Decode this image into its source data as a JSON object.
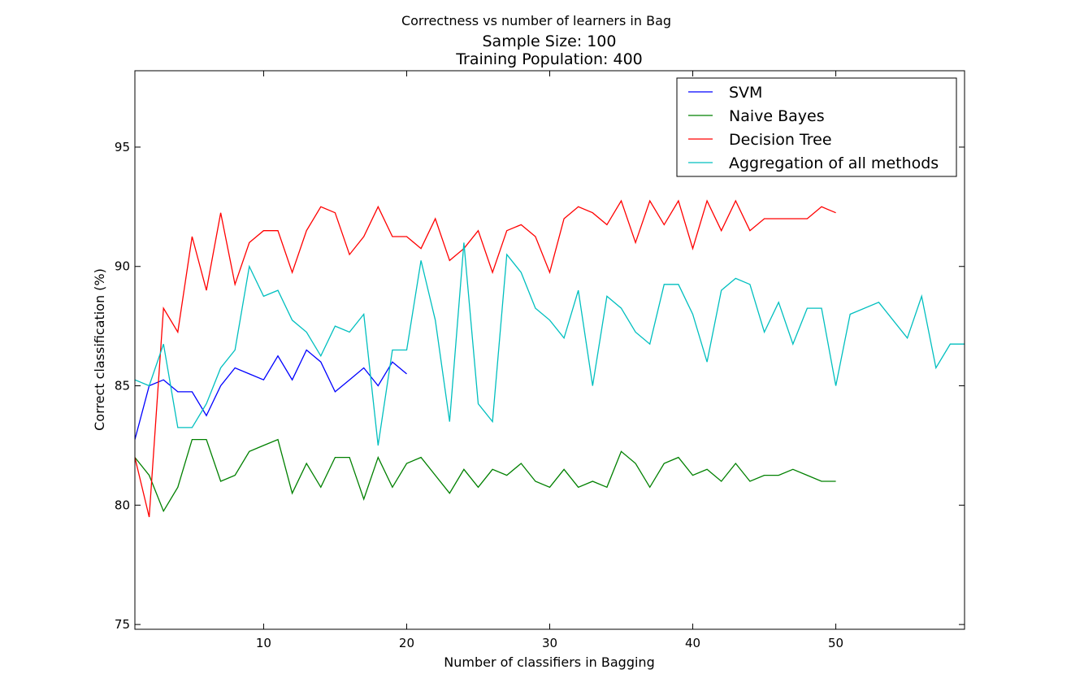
{
  "chart_data": {
    "type": "line",
    "suptitle": "Correctness vs number of learners in Bag",
    "title": [
      "Sample Size: 100",
      "Training Population: 400"
    ],
    "xlabel": "Number of classifiers in Bagging",
    "ylabel": "Correct classification (%)",
    "xlim": [
      1,
      59
    ],
    "ylim": [
      74.8,
      98.2
    ],
    "xticks": [
      10,
      20,
      30,
      40,
      50
    ],
    "yticks": [
      75,
      80,
      85,
      90,
      95
    ],
    "xtick_labels": [
      "10",
      "20",
      "30",
      "40",
      "50"
    ],
    "ytick_labels": [
      "75",
      "80",
      "85",
      "90",
      "95"
    ],
    "grid": false,
    "legend_position": "upper right",
    "series": [
      {
        "name": "SVM",
        "color": "#0000ff",
        "x": [
          1,
          2,
          3,
          4,
          5,
          6,
          7,
          8,
          9,
          10,
          11,
          12,
          13,
          14,
          15,
          16,
          17,
          18,
          19,
          20
        ],
        "values": [
          82.75,
          85.0,
          85.25,
          84.75,
          84.75,
          83.75,
          85.0,
          85.75,
          85.5,
          85.25,
          86.25,
          85.25,
          86.5,
          86.0,
          84.75,
          85.25,
          85.75,
          85.0,
          86.0,
          85.5
        ]
      },
      {
        "name": "Naive Bayes",
        "color": "#008000",
        "x": [
          1,
          2,
          3,
          4,
          5,
          6,
          7,
          8,
          9,
          10,
          11,
          12,
          13,
          14,
          15,
          16,
          17,
          18,
          19,
          20,
          21,
          22,
          23,
          24,
          25,
          26,
          27,
          28,
          29,
          30,
          31,
          32,
          33,
          34,
          35,
          36,
          37,
          38,
          39,
          40,
          41,
          42,
          43,
          44,
          45,
          46,
          47,
          48,
          49,
          50
        ],
        "values": [
          82.0,
          81.25,
          79.75,
          80.75,
          82.75,
          82.75,
          81.0,
          81.25,
          82.25,
          82.5,
          82.75,
          80.5,
          81.75,
          80.75,
          82.0,
          82.0,
          80.25,
          82.0,
          80.75,
          81.75,
          82.0,
          81.25,
          80.5,
          81.5,
          80.75,
          81.5,
          81.25,
          81.75,
          81.0,
          80.75,
          81.5,
          80.75,
          81.0,
          80.75,
          82.25,
          81.75,
          80.75,
          81.75,
          82.0,
          81.25,
          81.5,
          81.0,
          81.75,
          81.0,
          81.25,
          81.25,
          81.5,
          81.25,
          81.0,
          81.0
        ]
      },
      {
        "name": "Decision Tree",
        "color": "#ff0000",
        "x": [
          1,
          2,
          3,
          4,
          5,
          6,
          7,
          8,
          9,
          10,
          11,
          12,
          13,
          14,
          15,
          16,
          17,
          18,
          19,
          20,
          21,
          22,
          23,
          24,
          25,
          26,
          27,
          28,
          29,
          30,
          31,
          32,
          33,
          34,
          35,
          36,
          37,
          38,
          39,
          40,
          41,
          42,
          43,
          44,
          45,
          46,
          47,
          48,
          49,
          50
        ],
        "values": [
          82.0,
          79.5,
          88.25,
          87.25,
          91.25,
          89.0,
          92.25,
          89.25,
          91.0,
          91.5,
          91.5,
          89.75,
          91.5,
          92.5,
          92.25,
          90.5,
          91.25,
          92.5,
          91.25,
          91.25,
          90.75,
          92.0,
          90.25,
          90.75,
          91.5,
          89.75,
          91.5,
          91.75,
          91.25,
          89.75,
          92.0,
          92.5,
          92.25,
          91.75,
          92.75,
          91.0,
          92.75,
          91.75,
          92.75,
          90.75,
          92.75,
          91.5,
          92.75,
          91.5,
          92.0,
          92.0,
          92.0,
          92.0,
          92.5,
          92.25
        ]
      },
      {
        "name": "Aggregation of all methods",
        "color": "#00bfbf",
        "x": [
          1,
          2,
          3,
          4,
          5,
          6,
          7,
          8,
          9,
          10,
          11,
          12,
          13,
          14,
          15,
          16,
          17,
          18,
          19,
          20,
          21,
          22,
          23,
          24,
          25,
          26,
          27,
          28,
          29,
          30,
          31,
          32,
          33,
          34,
          35,
          36,
          37,
          38,
          39,
          40,
          41,
          42,
          43,
          44,
          45,
          46,
          47,
          48,
          49,
          50,
          51,
          53,
          55,
          56,
          57,
          58,
          59
        ],
        "values": [
          85.25,
          85.0,
          86.75,
          83.25,
          83.25,
          84.25,
          85.75,
          86.5,
          90.0,
          88.75,
          89.0,
          87.75,
          87.25,
          86.25,
          87.5,
          87.25,
          88.0,
          82.5,
          86.5,
          86.5,
          90.25,
          87.75,
          83.5,
          91.0,
          84.25,
          83.5,
          90.5,
          89.75,
          88.25,
          87.75,
          87.0,
          89.0,
          85.0,
          88.75,
          88.25,
          87.25,
          86.75,
          89.25,
          89.25,
          88.0,
          86.0,
          89.0,
          89.5,
          89.25,
          87.25,
          88.5,
          86.75,
          88.25,
          88.25,
          85.0,
          88.0,
          88.5,
          87.0,
          88.75,
          85.75,
          86.75,
          86.75
        ]
      }
    ]
  }
}
